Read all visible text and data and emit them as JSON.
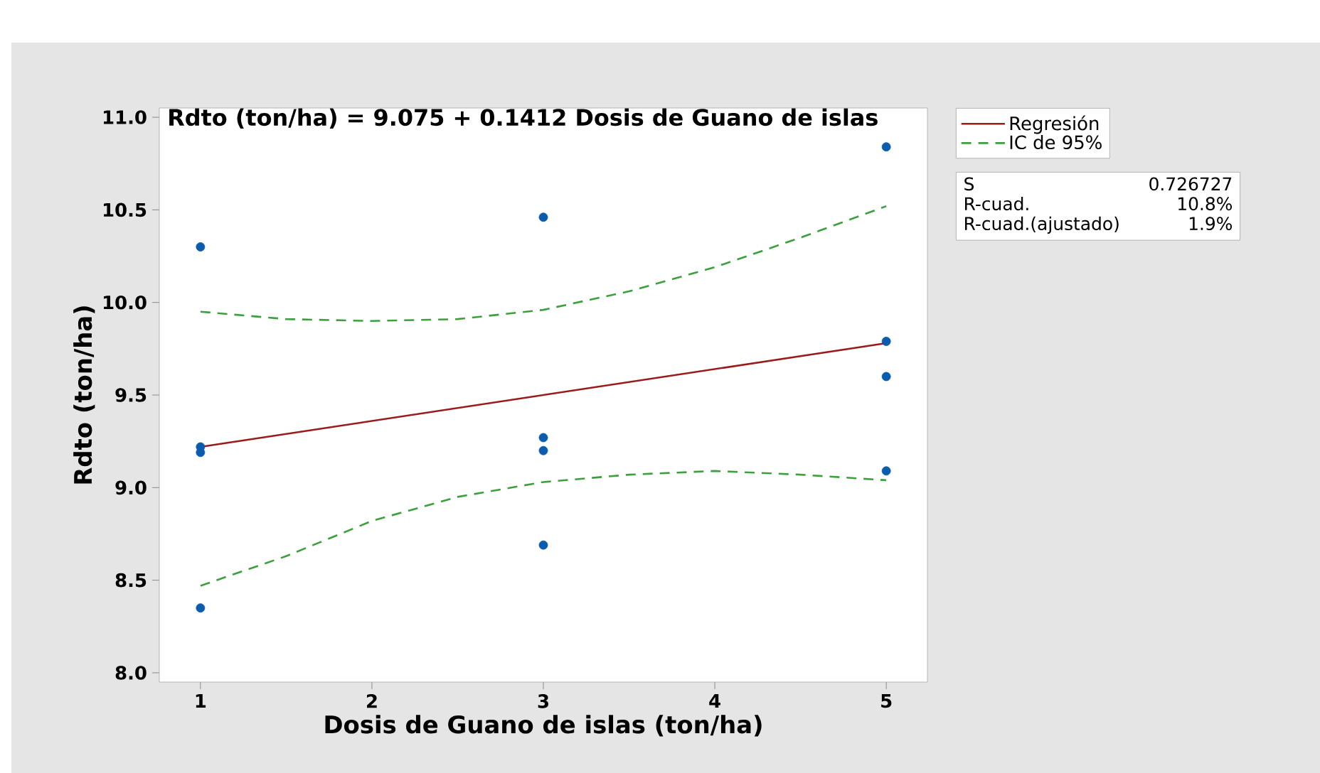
{
  "chart_data": {
    "type": "scatter",
    "title": "Rdto (ton/ha) = 9.075 + 0.1412 Dosis de Guano de islas",
    "xlabel": "Dosis de Guano de islas (ton/ha)",
    "ylabel": "Rdto (ton/ha)",
    "xlim": [
      0.76,
      5.24
    ],
    "ylim": [
      7.95,
      11.05
    ],
    "xticks": [
      1,
      2,
      3,
      4,
      5
    ],
    "yticks": [
      {
        "value": 8,
        "label": "8.0"
      },
      {
        "value": 8.5,
        "label": "8.5"
      },
      {
        "value": 9,
        "label": "9.0"
      },
      {
        "value": 9.5,
        "label": "9.5"
      },
      {
        "value": 10,
        "label": "10.0"
      },
      {
        "value": 10.5,
        "label": "10.5"
      },
      {
        "value": 11,
        "label": "11.0"
      }
    ],
    "grid": false,
    "legend": "right",
    "series": [
      {
        "type": "scatter",
        "color": "#0b5cad",
        "x": [
          1,
          1,
          1,
          1,
          3,
          3,
          3,
          3,
          5,
          5,
          5,
          5
        ],
        "values": [
          10.3,
          9.22,
          9.19,
          8.35,
          10.46,
          9.27,
          9.2,
          8.69,
          10.84,
          9.79,
          9.6,
          9.09
        ]
      },
      {
        "type": "line",
        "name": "Regresión",
        "color": "#9b1b1b",
        "line_style": "solid",
        "x": [
          1,
          5
        ],
        "values": [
          9.22,
          9.78
        ]
      },
      {
        "type": "line",
        "name": "IC de 95%",
        "color": "#3ca03c",
        "line_style": "dashed",
        "x": [
          1,
          1.5,
          2,
          2.5,
          3,
          3.5,
          4,
          4.5,
          5
        ],
        "values": [
          9.95,
          9.91,
          9.9,
          9.91,
          9.96,
          10.06,
          10.19,
          10.35,
          10.52
        ]
      },
      {
        "type": "line",
        "color": "#3ca03c",
        "line_style": "dashed",
        "x": [
          1,
          1.5,
          2,
          2.5,
          3,
          3.5,
          4,
          4.5,
          5
        ],
        "values": [
          8.47,
          8.63,
          8.82,
          8.95,
          9.03,
          9.07,
          9.09,
          9.07,
          9.04
        ]
      }
    ],
    "annotations": [
      "S",
      "0.726727",
      "R-cuad.",
      "10.8%",
      "R-cuad.(ajustado)",
      "1.9%"
    ]
  }
}
